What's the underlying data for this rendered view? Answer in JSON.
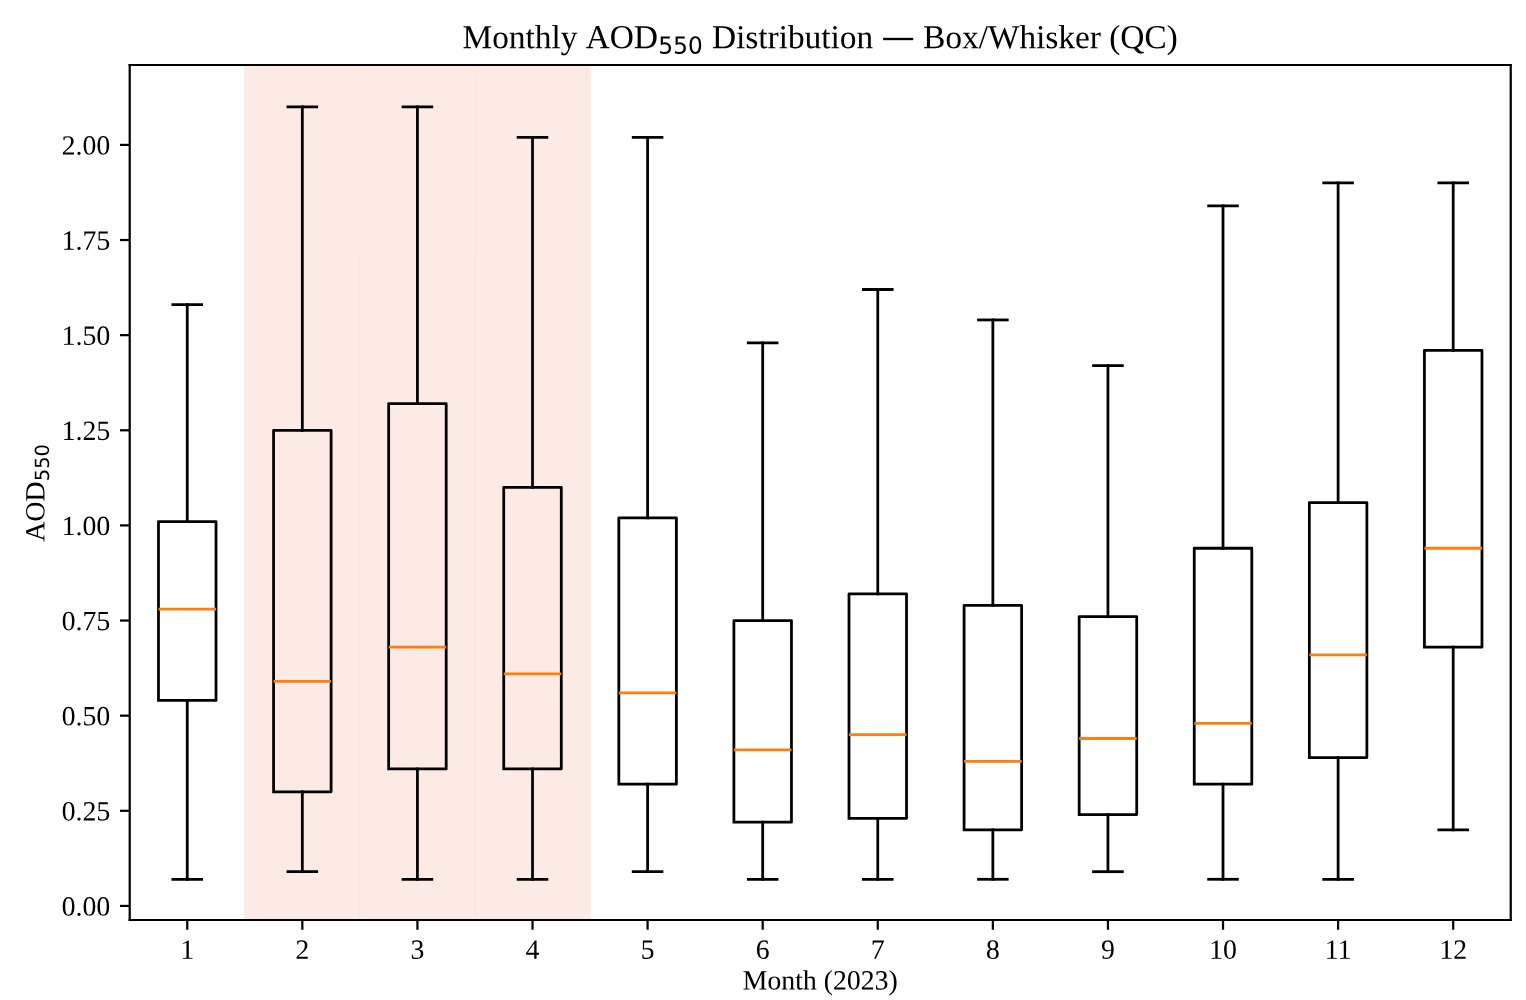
{
  "chart_data": {
    "type": "box",
    "title": "Monthly AOD$_{550}$ Distribution — Box/Whisker (QC)",
    "xlabel": "Month (2023)",
    "ylabel": "AOD$_{550}$",
    "categories": [
      "1",
      "2",
      "3",
      "4",
      "5",
      "6",
      "7",
      "8",
      "9",
      "10",
      "11",
      "12"
    ],
    "boxes": [
      {
        "low": 0.07,
        "q1": 0.54,
        "median": 0.78,
        "q3": 1.01,
        "high": 1.58
      },
      {
        "low": 0.09,
        "q1": 0.3,
        "median": 0.59,
        "q3": 1.25,
        "high": 2.1
      },
      {
        "low": 0.07,
        "q1": 0.36,
        "median": 0.68,
        "q3": 1.32,
        "high": 2.1
      },
      {
        "low": 0.07,
        "q1": 0.36,
        "median": 0.61,
        "q3": 1.1,
        "high": 2.02
      },
      {
        "low": 0.09,
        "q1": 0.32,
        "median": 0.56,
        "q3": 1.02,
        "high": 2.02
      },
      {
        "low": 0.07,
        "q1": 0.22,
        "median": 0.41,
        "q3": 0.75,
        "high": 1.48
      },
      {
        "low": 0.07,
        "q1": 0.23,
        "median": 0.45,
        "q3": 0.82,
        "high": 1.62
      },
      {
        "low": 0.07,
        "q1": 0.2,
        "median": 0.38,
        "q3": 0.79,
        "high": 1.54
      },
      {
        "low": 0.09,
        "q1": 0.24,
        "median": 0.44,
        "q3": 0.76,
        "high": 1.42
      },
      {
        "low": 0.07,
        "q1": 0.32,
        "median": 0.48,
        "q3": 0.94,
        "high": 1.84
      },
      {
        "low": 0.07,
        "q1": 0.39,
        "median": 0.66,
        "q3": 1.06,
        "high": 1.9
      },
      {
        "low": 0.2,
        "q1": 0.68,
        "median": 0.94,
        "q3": 1.46,
        "high": 1.9
      }
    ],
    "bands": [
      {
        "axis": "x",
        "from": "2",
        "to": "2",
        "color": "#fbe3d9"
      },
      {
        "axis": "x",
        "from": "3",
        "to": "3",
        "color": "#fbe3d9"
      },
      {
        "axis": "x",
        "from": "4",
        "to": "4",
        "color": "#fbe3d9"
      }
    ],
    "ylim": [
      -0.037,
      2.21
    ],
    "yticks": [
      {
        "value": 0,
        "label": "0.00"
      },
      {
        "value": 0.25,
        "label": "0.25"
      },
      {
        "value": 0.5,
        "label": "0.50"
      },
      {
        "value": 0.75,
        "label": "0.75"
      },
      {
        "value": 1,
        "label": "1.00"
      },
      {
        "value": 1.25,
        "label": "1.25"
      },
      {
        "value": 1.5,
        "label": "1.50"
      },
      {
        "value": 1.75,
        "label": "1.75"
      },
      {
        "value": 2,
        "label": "2.00"
      }
    ],
    "grid": false,
    "legend": false
  }
}
